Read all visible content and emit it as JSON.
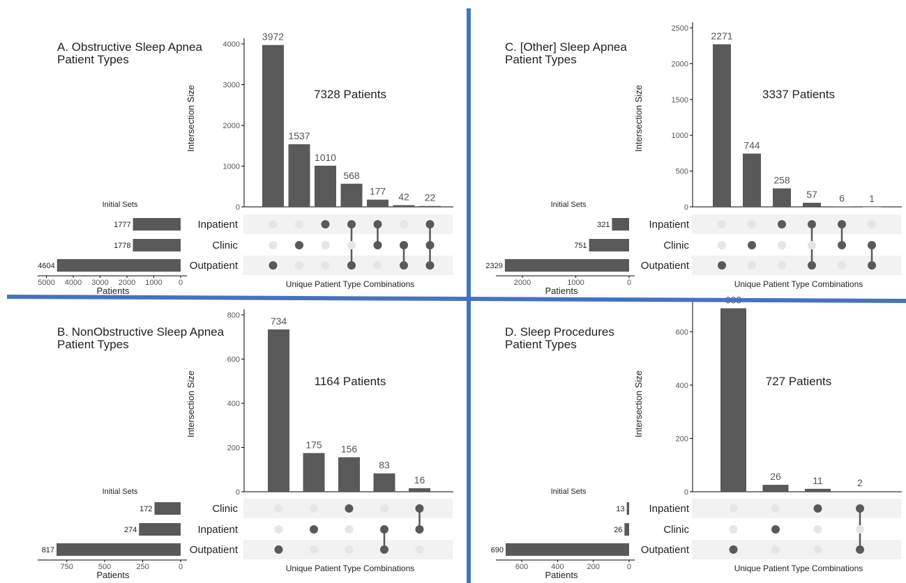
{
  "colors": {
    "divider": "#4472C4",
    "bar": "#595959",
    "dot_on": "#595959",
    "dot_off": "#e6e6e6",
    "band": "#f2f2f2",
    "axis": "#000000",
    "tick_text": "#555555",
    "label_text": "#333333",
    "count_text": "#555555"
  },
  "chart_data": [
    {
      "type": "bar",
      "subtype": "upset",
      "panel": "A",
      "title": "A. Obstructive Sleep Apnea",
      "subtitle": "Patient Types",
      "total_label": "7328 Patients",
      "ylabel": "Intersection Size",
      "xlabel": "Unique Patient Type Combinations",
      "sets_title": "Initial Sets",
      "sets_xlabel": "Patients",
      "ylim": [
        0,
        4000
      ],
      "yticks": [
        0,
        1000,
        2000,
        3000,
        4000
      ],
      "intersections": [
        {
          "value": 3972,
          "sets": [
            "Outpatient"
          ]
        },
        {
          "value": 1537,
          "sets": [
            "Clinic"
          ]
        },
        {
          "value": 1010,
          "sets": [
            "Inpatient"
          ]
        },
        {
          "value": 568,
          "sets": [
            "Inpatient",
            "Outpatient"
          ]
        },
        {
          "value": 177,
          "sets": [
            "Inpatient",
            "Clinic"
          ]
        },
        {
          "value": 42,
          "sets": [
            "Clinic",
            "Outpatient"
          ]
        },
        {
          "value": 22,
          "sets": [
            "Inpatient",
            "Clinic",
            "Outpatient"
          ]
        }
      ],
      "sets": [
        {
          "name": "Inpatient",
          "size": 1777
        },
        {
          "name": "Clinic",
          "size": 1778
        },
        {
          "name": "Outpatient",
          "size": 4604
        }
      ],
      "set_xlim": [
        0,
        5000
      ],
      "set_xticks": [
        5000,
        4000,
        3000,
        2000,
        1000,
        0
      ]
    },
    {
      "type": "bar",
      "subtype": "upset",
      "panel": "C",
      "title": "C. [Other] Sleep Apnea",
      "subtitle": "Patient Types",
      "total_label": "3337 Patients",
      "ylabel": "Intersection Size",
      "xlabel": "Unique Patient Type Combinations",
      "sets_title": "Initial Sets",
      "sets_xlabel": "Patients",
      "ylim": [
        0,
        2500
      ],
      "yticks": [
        0,
        500,
        1000,
        1500,
        2000,
        2500
      ],
      "intersections": [
        {
          "value": 2271,
          "sets": [
            "Outpatient"
          ]
        },
        {
          "value": 744,
          "sets": [
            "Clinic"
          ]
        },
        {
          "value": 258,
          "sets": [
            "Inpatient"
          ]
        },
        {
          "value": 57,
          "sets": [
            "Inpatient",
            "Outpatient"
          ]
        },
        {
          "value": 6,
          "sets": [
            "Inpatient",
            "Clinic"
          ]
        },
        {
          "value": 1,
          "sets": [
            "Clinic",
            "Outpatient"
          ]
        }
      ],
      "sets": [
        {
          "name": "Inpatient",
          "size": 321
        },
        {
          "name": "Clinic",
          "size": 751
        },
        {
          "name": "Outpatient",
          "size": 2329
        }
      ],
      "set_xlim": [
        0,
        2500
      ],
      "set_xticks": [
        2000,
        1000,
        0
      ]
    },
    {
      "type": "bar",
      "subtype": "upset",
      "panel": "B",
      "title": "B. NonObstructive Sleep Apnea",
      "subtitle": "Patient Types",
      "total_label": "1164 Patients",
      "ylabel": "Intersection Size",
      "xlabel": "Unique Patient Type Combinations",
      "sets_title": "Initial Sets",
      "sets_xlabel": "Patients",
      "ylim": [
        0,
        800
      ],
      "yticks": [
        0,
        200,
        400,
        600,
        800
      ],
      "intersections": [
        {
          "value": 734,
          "sets": [
            "Outpatient"
          ]
        },
        {
          "value": 175,
          "sets": [
            "Inpatient"
          ]
        },
        {
          "value": 156,
          "sets": [
            "Clinic"
          ]
        },
        {
          "value": 83,
          "sets": [
            "Inpatient",
            "Outpatient"
          ]
        },
        {
          "value": 16,
          "sets": [
            "Clinic",
            "Inpatient"
          ]
        }
      ],
      "sets": [
        {
          "name": "Clinic",
          "size": 172
        },
        {
          "name": "Inpatient",
          "size": 274
        },
        {
          "name": "Outpatient",
          "size": 817
        }
      ],
      "set_xlim": [
        0,
        900
      ],
      "set_xticks": [
        750,
        500,
        250,
        0
      ]
    },
    {
      "type": "bar",
      "subtype": "upset",
      "panel": "D",
      "title": "D. Sleep Procedures",
      "subtitle": "Patient Types",
      "total_label": "727 Patients",
      "ylabel": "Intersection Size",
      "xlabel": "Unique Patient Type Combinations",
      "sets_title": "Initial Sets",
      "sets_xlabel": "Patients",
      "ylim": [
        0,
        700
      ],
      "yticks": [
        0,
        200,
        400,
        600
      ],
      "intersections": [
        {
          "value": 688,
          "sets": [
            "Outpatient"
          ]
        },
        {
          "value": 26,
          "sets": [
            "Clinic"
          ]
        },
        {
          "value": 11,
          "sets": [
            "Inpatient"
          ]
        },
        {
          "value": 2,
          "sets": [
            "Inpatient",
            "Outpatient"
          ]
        }
      ],
      "sets": [
        {
          "name": "Inpatient",
          "size": 13
        },
        {
          "name": "Clinic",
          "size": 26
        },
        {
          "name": "Outpatient",
          "size": 690
        }
      ],
      "set_xlim": [
        0,
        750
      ],
      "set_xticks": [
        600,
        400,
        200,
        0
      ]
    }
  ]
}
